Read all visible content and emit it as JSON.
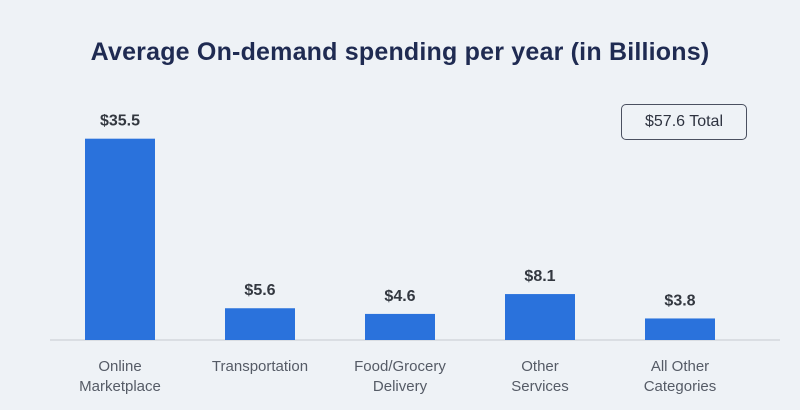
{
  "chart_data": {
    "type": "bar",
    "title": "Average On-demand spending per year (in Billions)",
    "categories": [
      [
        "Online",
        "Marketplace"
      ],
      [
        "Transportation"
      ],
      [
        "Food/Grocery",
        "Delivery"
      ],
      [
        "Other",
        "Services"
      ],
      [
        "All Other",
        "Categories"
      ]
    ],
    "values": [
      35.5,
      5.6,
      4.6,
      8.1,
      3.8
    ],
    "value_labels": [
      "$35.5",
      "$5.6",
      "$4.6",
      "$8.1",
      "$3.8"
    ],
    "ylim": [
      0,
      39.5
    ],
    "grid": false,
    "total_label": "$57.6 Total",
    "colors": {
      "bar": "#2a72dc",
      "axis": "#c5c9d0",
      "title": "#1f2b52"
    }
  }
}
